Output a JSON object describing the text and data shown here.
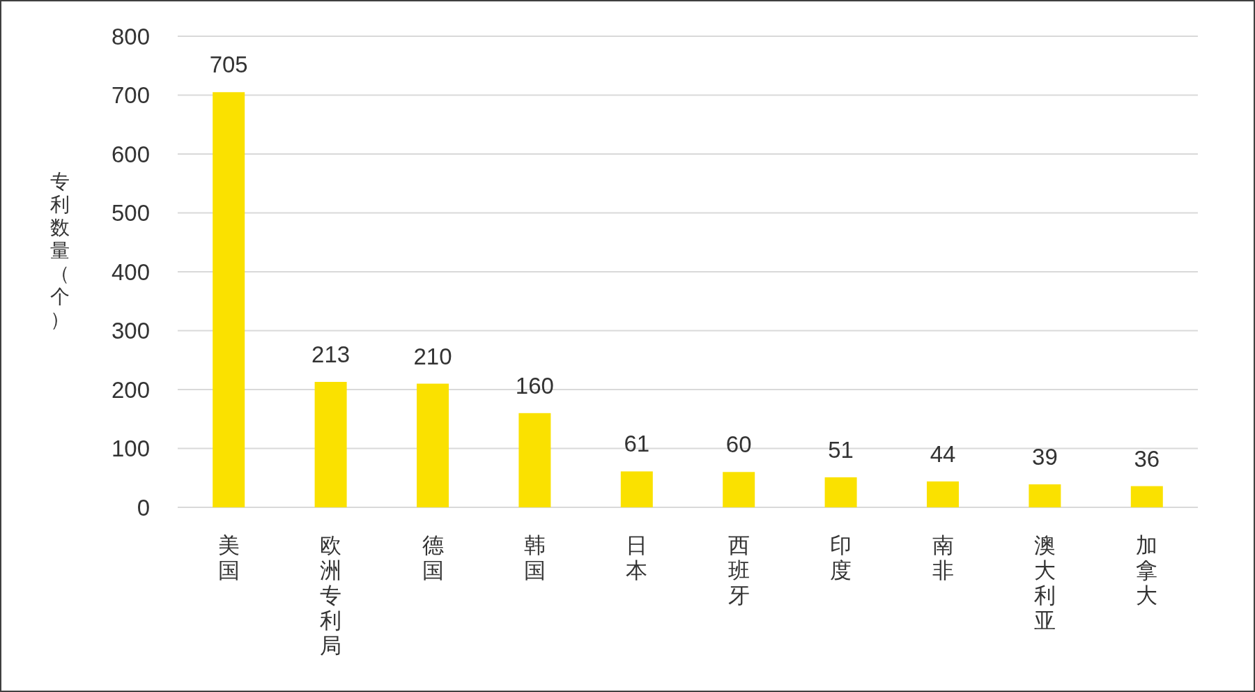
{
  "chart_data": {
    "type": "bar",
    "ylabel": "专利数量（个）",
    "categories": [
      "美国",
      "欧洲专利局",
      "德国",
      "韩国",
      "日本",
      "西班牙",
      "印度",
      "南非",
      "澳大利亚",
      "加拿大"
    ],
    "values": [
      705,
      213,
      210,
      160,
      61,
      60,
      51,
      44,
      39,
      36
    ],
    "color": "#fae100",
    "ylim": [
      0,
      800
    ],
    "yticks": [
      0,
      100,
      200,
      300,
      400,
      500,
      600,
      700,
      800
    ],
    "grid": "y",
    "data_labels": true
  }
}
